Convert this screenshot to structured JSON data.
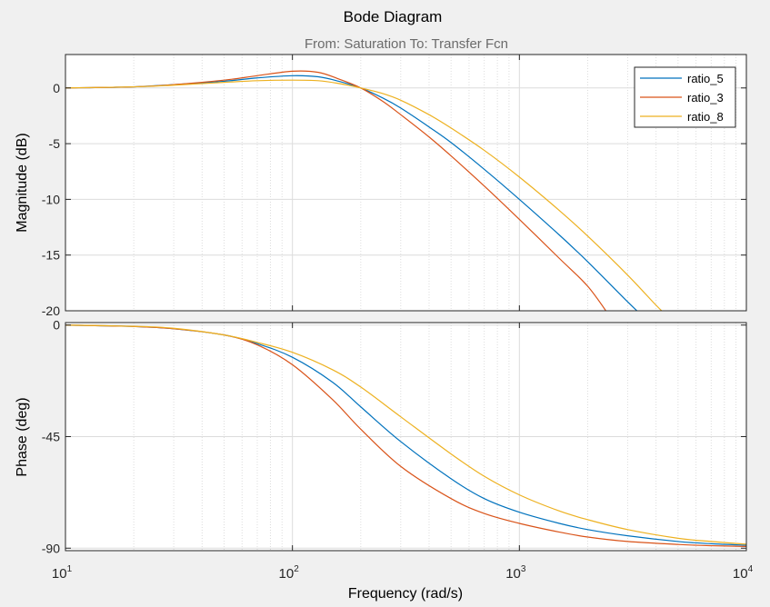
{
  "title": "Bode Diagram",
  "subtitle": "From: Saturation  To: Transfer Fcn",
  "xlabel": "Frequency  (rad/s)",
  "x_ticks": [
    {
      "base": "10",
      "exp": "1",
      "value": 10
    },
    {
      "base": "10",
      "exp": "2",
      "value": 100
    },
    {
      "base": "10",
      "exp": "3",
      "value": 1000
    },
    {
      "base": "10",
      "exp": "4",
      "value": 10000
    }
  ],
  "colors": {
    "background": "#f0f0f0",
    "axes": "#ffffff",
    "grid": "#dcdcdc",
    "frame": "#262626"
  },
  "chart_data": [
    {
      "type": "line",
      "panel": "magnitude",
      "ylabel": "Magnitude (dB)",
      "ylim": [
        -20,
        3
      ],
      "y_ticks": [
        "0",
        "-5",
        "-10",
        "-15",
        "-20"
      ],
      "y_tick_values": [
        0,
        -5,
        -10,
        -15,
        -20
      ],
      "xscale": "log",
      "xlim": [
        10,
        10000
      ],
      "grid": true,
      "legend": "top-right",
      "series": [
        {
          "name": "ratio_5",
          "color": "#0072bd",
          "x": [
            10,
            20,
            30,
            50,
            70,
            100,
            130,
            160,
            200,
            250,
            300,
            400,
            500,
            700,
            1000,
            1500,
            2000,
            3000,
            3500
          ],
          "y": [
            0,
            0.1,
            0.3,
            0.6,
            0.9,
            1.1,
            1.0,
            0.6,
            0,
            -0.9,
            -1.8,
            -3.5,
            -4.9,
            -7.3,
            -10.0,
            -13.2,
            -15.6,
            -19.2,
            -20.5
          ]
        },
        {
          "name": "ratio_3",
          "color": "#d95319",
          "x": [
            10,
            20,
            30,
            50,
            70,
            100,
            130,
            160,
            200,
            250,
            300,
            400,
            500,
            700,
            1000,
            1500,
            2000,
            2500
          ],
          "y": [
            0,
            0.1,
            0.3,
            0.7,
            1.1,
            1.5,
            1.4,
            0.8,
            0,
            -1.2,
            -2.4,
            -4.4,
            -6.1,
            -8.8,
            -11.8,
            -15.3,
            -17.8,
            -20.5
          ]
        },
        {
          "name": "ratio_8",
          "color": "#edb120",
          "x": [
            10,
            20,
            30,
            50,
            70,
            100,
            130,
            160,
            200,
            250,
            300,
            400,
            500,
            700,
            1000,
            1500,
            2000,
            3000,
            4000,
            4500
          ],
          "y": [
            0,
            0.1,
            0.25,
            0.5,
            0.65,
            0.7,
            0.65,
            0.4,
            0,
            -0.5,
            -1.1,
            -2.4,
            -3.6,
            -5.6,
            -8.0,
            -11.0,
            -13.3,
            -16.8,
            -19.5,
            -20.5
          ]
        }
      ]
    },
    {
      "type": "line",
      "panel": "phase",
      "ylabel": "Phase (deg)",
      "ylim": [
        -91,
        1
      ],
      "y_ticks": [
        "0",
        "-45",
        "-90"
      ],
      "y_tick_values": [
        0,
        -45,
        -90
      ],
      "xscale": "log",
      "xlim": [
        10,
        10000
      ],
      "grid": true,
      "series": [
        {
          "name": "ratio_5",
          "color": "#0072bd",
          "x": [
            10,
            20,
            30,
            50,
            70,
            100,
            150,
            200,
            300,
            500,
            700,
            1000,
            1500,
            2000,
            3000,
            5000,
            7000,
            10000
          ],
          "y": [
            0,
            -0.6,
            -1.5,
            -4,
            -7.5,
            -13,
            -23,
            -33,
            -47,
            -62,
            -70,
            -75.5,
            -80,
            -82.5,
            -85,
            -87.3,
            -88.2,
            -88.8
          ]
        },
        {
          "name": "ratio_3",
          "color": "#d95319",
          "x": [
            10,
            20,
            30,
            50,
            70,
            100,
            150,
            200,
            300,
            500,
            700,
            1000,
            1500,
            2000,
            3000,
            5000,
            7000,
            10000
          ],
          "y": [
            0,
            -0.6,
            -1.5,
            -4,
            -8,
            -16,
            -30,
            -42,
            -57,
            -70,
            -76,
            -80,
            -83.5,
            -85.5,
            -87.3,
            -88.5,
            -89,
            -89.3
          ]
        },
        {
          "name": "ratio_8",
          "color": "#edb120",
          "x": [
            10,
            20,
            30,
            50,
            70,
            100,
            150,
            200,
            300,
            500,
            700,
            1000,
            1500,
            2000,
            3000,
            5000,
            7000,
            10000
          ],
          "y": [
            0,
            -0.5,
            -1.3,
            -4,
            -7,
            -11,
            -18,
            -25,
            -37,
            -52,
            -61,
            -68.5,
            -75,
            -78.5,
            -82.5,
            -86,
            -87.3,
            -88.4
          ]
        }
      ]
    }
  ]
}
